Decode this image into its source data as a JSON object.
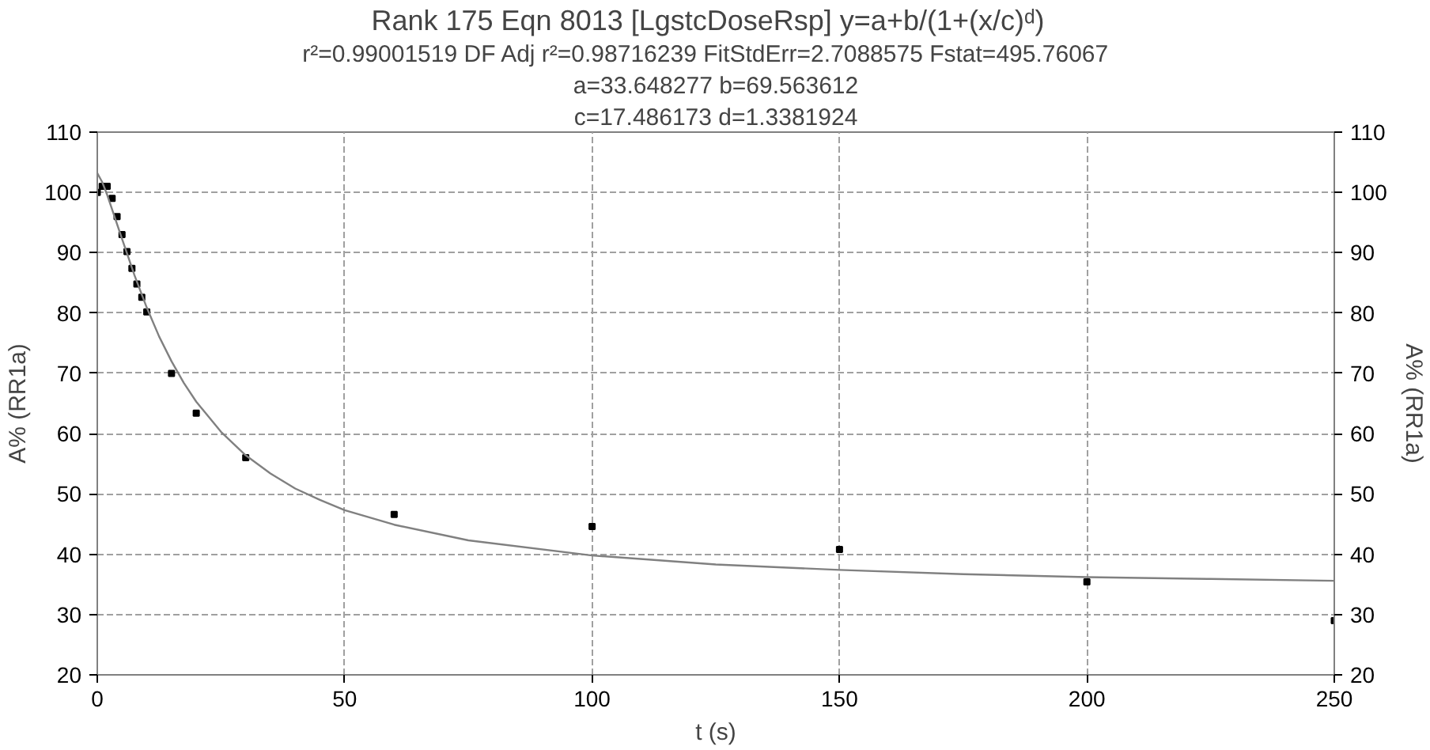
{
  "chart_data": {
    "type": "scatter",
    "title": "Rank 175  Eqn 8013  [LgstcDoseRsp] y=a+b/(1+(x/c)ᵈ)",
    "subtitle": "r²=0.99001519  DF Adj r²=0.98716239  FitStdErr=2.7088575  Fstat=495.76067",
    "annotations": [
      "a=33.648277 b=69.563612",
      "c=17.486173 d=1.3381924"
    ],
    "xlabel": "t (s)",
    "ylabel": "A% (RR1a)",
    "y2label": "A% (RR1a)",
    "x": [
      0,
      1,
      2,
      3,
      4,
      5,
      6,
      7,
      8,
      9,
      10,
      15,
      20,
      30,
      60,
      100,
      150,
      200,
      250
    ],
    "series": [
      {
        "color": "#000000",
        "marker": "square",
        "values": [
          100,
          101,
          101,
          99,
          96,
          93,
          90.2,
          87.4,
          84.8,
          82.6,
          80.2,
          70,
          63.4,
          56,
          46.6,
          44.6,
          40.8,
          35.4,
          29
        ]
      },
      {
        "type": "line",
        "color": "#808080",
        "marker": "none",
        "line_style": "solid",
        "x": [
          0,
          1,
          2,
          5,
          7.5,
          10,
          12.5,
          15,
          17.5,
          20,
          25,
          30,
          35,
          40,
          45,
          50,
          60,
          75,
          100,
          125,
          150,
          175,
          200,
          225,
          250
        ],
        "values": [
          103.2,
          101.7,
          99.6,
          92.3,
          86.3,
          80.9,
          76.1,
          72,
          68.4,
          65.3,
          60.3,
          56.4,
          53.4,
          50.9,
          49,
          47.3,
          44.9,
          42.3,
          39.8,
          38.3,
          37.4,
          36.7,
          36.2,
          35.9,
          35.6
        ]
      }
    ],
    "xlim": [
      0,
      250
    ],
    "xticks": [
      0,
      50,
      100,
      150,
      200,
      250
    ],
    "ylim": [
      20,
      110
    ],
    "yticks": [
      20,
      30,
      40,
      50,
      60,
      70,
      80,
      90,
      100,
      110
    ],
    "y2lim": [
      20,
      110
    ],
    "y2ticks": [
      20,
      30,
      40,
      50,
      60,
      70,
      80,
      90,
      100,
      110
    ],
    "grid": true
  }
}
